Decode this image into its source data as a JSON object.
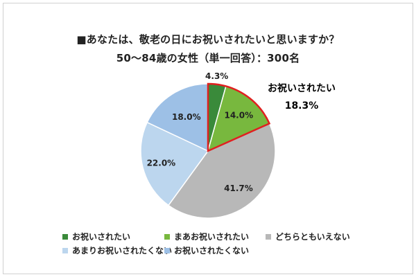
{
  "title": {
    "line1": "■あなたは、敬老の日にお祝いされたいと思いますか？",
    "line2": "50～84歳の女性（単一回答）：300名"
  },
  "callout": {
    "label": "お祝いされたい",
    "value": "18.3%"
  },
  "colors": {
    "highlight_border": "#e02020",
    "slice_border": "#ffffff"
  },
  "chart_data": {
    "type": "pie",
    "unit": "%",
    "start_angle_deg": 0,
    "direction": "clockwise",
    "slices": [
      {
        "name": "お祝いされたい",
        "value": 4.3,
        "label": "4.3%",
        "color": "#3a8a3a",
        "highlight": true
      },
      {
        "name": "まあお祝いされたい",
        "value": 14.0,
        "label": "14.0%",
        "color": "#78b83e",
        "highlight": true
      },
      {
        "name": "どちらともいえない",
        "value": 41.7,
        "label": "41.7%",
        "color": "#b8b8b8",
        "highlight": false
      },
      {
        "name": "あまりお祝いされたくない",
        "value": 22.0,
        "label": "22.0%",
        "color": "#bcd6ee",
        "highlight": false
      },
      {
        "name": "お祝いされたくない",
        "value": 18.0,
        "label": "18.0%",
        "color": "#9dc0e6",
        "highlight": false
      }
    ],
    "legend_position": "bottom"
  }
}
